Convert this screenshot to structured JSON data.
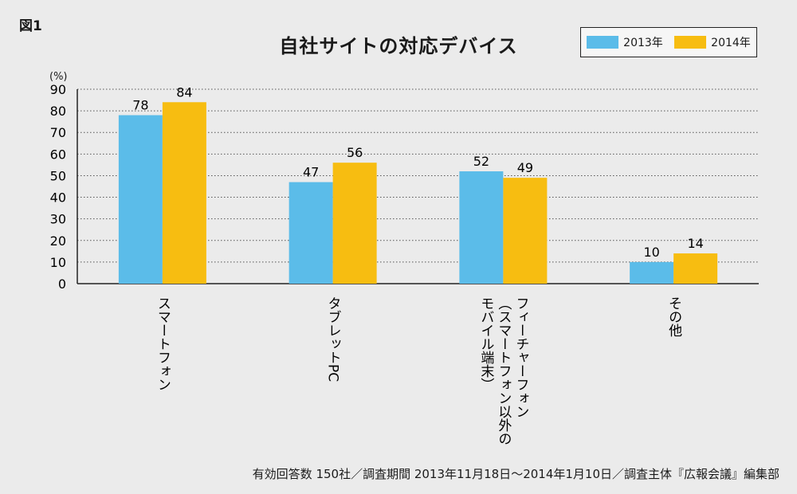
{
  "figure_label": "図1",
  "footer": "有効回答数 150社／調査期間 2013年11月18日〜2014年1月10日／調査主体『広報会議』編集部",
  "colors": {
    "series_2013": "#5bbce9",
    "series_2014": "#f7bd11",
    "grid": "#555555",
    "axis": "#222222"
  },
  "chart_data": {
    "type": "bar",
    "title": "自社サイトの対応デバイス",
    "ylabel": "(%)",
    "xlabel": "",
    "ylim": [
      0,
      90
    ],
    "yticks": [
      0,
      10,
      20,
      30,
      40,
      50,
      60,
      70,
      80,
      90
    ],
    "grid": true,
    "legend_position": "top-right",
    "categories": [
      [
        "スマートフォン"
      ],
      [
        "タブレットPC"
      ],
      [
        "フィーチャーフォン",
        "（スマートフォン以外の",
        "モバイル端末）"
      ],
      [
        "その他"
      ]
    ],
    "series": [
      {
        "name": "2013年",
        "values": [
          78,
          47,
          52,
          10
        ]
      },
      {
        "name": "2014年",
        "values": [
          84,
          56,
          49,
          14
        ]
      }
    ]
  }
}
